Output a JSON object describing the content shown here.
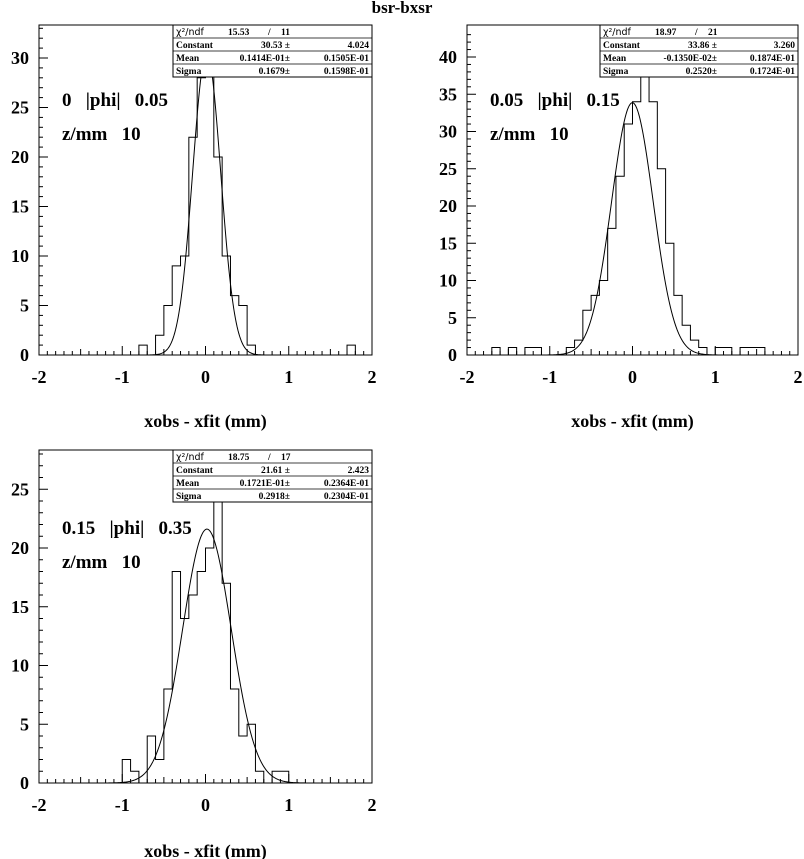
{
  "title": "bsr-bxsr",
  "chart_data": [
    {
      "type": "histogram",
      "xlabel": "xobs - xfit (mm)",
      "ylabel": "",
      "xlim": [
        -2,
        2
      ],
      "ylim": [
        0,
        33
      ],
      "x_ticks": [
        "-2",
        "-1",
        "0",
        "1",
        "2"
      ],
      "y_ticks": [
        "0",
        "5",
        "10",
        "15",
        "20",
        "25",
        "30"
      ],
      "annotations": [
        "0   |phi|   0.05",
        "z/mm   10"
      ],
      "bin_width": 0.1,
      "bin_start": -0.8,
      "bin_values": [
        1,
        0,
        2,
        5,
        9,
        10,
        22,
        28,
        30,
        20,
        10,
        6,
        5,
        1,
        0,
        0,
        0,
        0,
        0,
        0,
        0,
        0,
        0,
        0,
        0,
        1
      ],
      "fit": {
        "type": "gaussian",
        "constant": 30.53,
        "mean": 0.01414,
        "sigma": 0.1679
      },
      "stats": {
        "header": [
          "χ²/ndf",
          "15.53",
          "/",
          "11"
        ],
        "rows": [
          {
            "label": "Constant",
            "value": "30.53 ±",
            "error": "4.024"
          },
          {
            "label": "Mean",
            "value": "0.1414E-01±",
            "error": "0.1505E-01"
          },
          {
            "label": "Sigma",
            "value": "0.1679±",
            "error": "0.1598E-01"
          }
        ]
      }
    },
    {
      "type": "histogram",
      "xlabel": "xobs - xfit (mm)",
      "ylabel": "",
      "xlim": [
        -2,
        2
      ],
      "ylim": [
        0,
        43
      ],
      "x_ticks": [
        "-2",
        "-1",
        "0",
        "1",
        "2"
      ],
      "y_ticks": [
        "0",
        "5",
        "10",
        "15",
        "20",
        "25",
        "30",
        "35",
        "40"
      ],
      "annotations": [
        "0.05   |phi|   0.15",
        "z/mm   10"
      ],
      "bin_width": 0.1,
      "bin_start": -1.7,
      "bin_values": [
        1,
        0,
        1,
        0,
        1,
        1,
        0,
        0,
        0,
        1,
        2,
        6,
        8,
        10,
        17,
        24,
        31,
        34,
        39,
        34,
        25,
        15,
        8,
        4,
        2,
        1,
        0,
        1,
        1,
        0,
        1,
        1,
        1
      ],
      "fit": {
        "type": "gaussian",
        "constant": 33.86,
        "mean": -0.00135,
        "sigma": 0.252
      },
      "stats": {
        "header": [
          "χ²/ndf",
          "18.97",
          "/",
          "21"
        ],
        "rows": [
          {
            "label": "Constant",
            "value": "33.86 ±",
            "error": "3.260"
          },
          {
            "label": "Mean",
            "value": "-0.1350E-02±",
            "error": "0.1874E-01"
          },
          {
            "label": "Sigma",
            "value": "0.2520±",
            "error": "0.1724E-01"
          }
        ]
      }
    },
    {
      "type": "histogram",
      "xlabel": "xobs - xfit (mm)",
      "ylabel": "",
      "xlim": [
        -2,
        2
      ],
      "ylim": [
        0,
        28
      ],
      "x_ticks": [
        "-2",
        "-1",
        "0",
        "1",
        "2"
      ],
      "y_ticks": [
        "0",
        "5",
        "10",
        "15",
        "20",
        "25"
      ],
      "annotations": [
        "0.15   |phi|   0.35",
        "z/mm   10"
      ],
      "bin_width": 0.1,
      "bin_start": -1.0,
      "bin_values": [
        2,
        1,
        0,
        4,
        2,
        8,
        18,
        14,
        16,
        18,
        20,
        26,
        17,
        8,
        4,
        5,
        1,
        0,
        1,
        1
      ],
      "fit": {
        "type": "gaussian",
        "constant": 21.61,
        "mean": 0.01721,
        "sigma": 0.2918
      },
      "stats": {
        "header": [
          "χ²/ndf",
          "18.75",
          "/",
          "17"
        ],
        "rows": [
          {
            "label": "Constant",
            "value": "21.61 ±",
            "error": "2.423"
          },
          {
            "label": "Mean",
            "value": "0.1721E-01±",
            "error": "0.2364E-01"
          },
          {
            "label": "Sigma",
            "value": "0.2918±",
            "error": "0.2304E-01"
          }
        ]
      }
    }
  ]
}
